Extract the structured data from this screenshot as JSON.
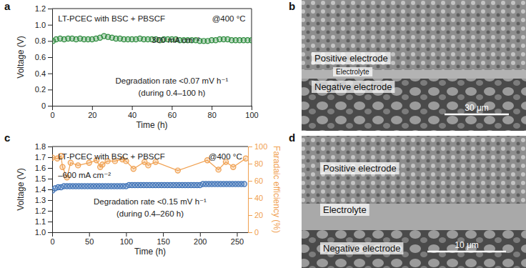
{
  "chart_data": [
    {
      "type": "scatter",
      "panel": "a",
      "xlabel": "Time (h)",
      "ylabel": "Voltage (V)",
      "xlim": [
        0,
        100
      ],
      "xticks": [
        0,
        20,
        40,
        60,
        80,
        100
      ],
      "ylim": [
        0,
        1.2
      ],
      "yticks": [
        0,
        0.2,
        0.4,
        0.6,
        0.8,
        {
          "value": 1,
          "label": "1.0"
        },
        1.2
      ],
      "annotations": [
        "LT-PCEC with BSC + PBSCF",
        "@400 °C",
        "300 mA cm⁻²",
        "Degradation rate <0.07 mV h⁻¹",
        "(during 0.4–100 h)"
      ],
      "series": [
        {
          "type": "scatter",
          "marker": "circle",
          "color": "#2e8b3e",
          "x": [
            0.4,
            2,
            4,
            6,
            8,
            10,
            12,
            14,
            16,
            18,
            20,
            22,
            24,
            26,
            28,
            30,
            32,
            34,
            36,
            38,
            40,
            42,
            44,
            46,
            48,
            50,
            52,
            54,
            56,
            58,
            60,
            62,
            64,
            66,
            68,
            70,
            72,
            74,
            76,
            78,
            80,
            82,
            84,
            86,
            88,
            90,
            92,
            94,
            96,
            98,
            100
          ],
          "values": [
            0.8,
            0.82,
            0.83,
            0.82,
            0.83,
            0.83,
            0.82,
            0.83,
            0.82,
            0.82,
            0.82,
            0.83,
            0.84,
            0.86,
            0.85,
            0.84,
            0.83,
            0.83,
            0.82,
            0.82,
            0.82,
            0.82,
            0.83,
            0.82,
            0.82,
            0.82,
            0.82,
            0.81,
            0.82,
            0.82,
            0.82,
            0.82,
            0.81,
            0.81,
            0.81,
            0.81,
            0.81,
            0.8,
            0.8,
            0.8,
            0.81,
            0.81,
            0.82,
            0.82,
            0.82,
            0.81,
            0.81,
            0.81,
            0.81,
            0.81,
            0.81
          ]
        }
      ]
    },
    {
      "type": "scatter",
      "panel": "c",
      "xlabel": "Time (h)",
      "ylabel": "Voltage (V)",
      "y2label": "Faradaic efficiency (%)",
      "xlim": [
        0,
        265
      ],
      "xticks": [
        0,
        50,
        100,
        150,
        200,
        250
      ],
      "ylim": [
        1,
        1.8
      ],
      "yticks": [
        {
          "value": 1,
          "label": "1.0"
        },
        1.1,
        1.2,
        1.3,
        1.4,
        1.5,
        1.6,
        1.7,
        1.8
      ],
      "y2lim": [
        0,
        100
      ],
      "y2ticks": [
        0,
        20,
        40,
        60,
        80,
        100
      ],
      "annotations": [
        "LT-PCEC with BSC + PBSCF",
        "@400 °C",
        "–600 mA cm⁻²",
        "Degradation rate <0.15 mV h⁻¹",
        "(during 0.4–260 h)"
      ],
      "series": [
        {
          "type": "scatter",
          "marker": "circle",
          "color": "#3a6fb5",
          "x": [
            0.4,
            4,
            8,
            12,
            16,
            20,
            24,
            28,
            32,
            36,
            40,
            44,
            48,
            52,
            56,
            60,
            64,
            68,
            72,
            76,
            80,
            84,
            88,
            92,
            96,
            100,
            104,
            108,
            112,
            116,
            120,
            124,
            128,
            132,
            136,
            140,
            144,
            148,
            152,
            156,
            160,
            164,
            168,
            172,
            176,
            180,
            184,
            188,
            192,
            196,
            200,
            204,
            208,
            212,
            216,
            220,
            224,
            228,
            232,
            236,
            240,
            244,
            248,
            252,
            256,
            260
          ],
          "values": [
            1.39,
            1.41,
            1.42,
            1.42,
            1.43,
            1.43,
            1.43,
            1.43,
            1.43,
            1.43,
            1.43,
            1.43,
            1.43,
            1.43,
            1.43,
            1.43,
            1.43,
            1.43,
            1.43,
            1.43,
            1.43,
            1.43,
            1.43,
            1.43,
            1.43,
            1.43,
            1.44,
            1.44,
            1.44,
            1.44,
            1.44,
            1.44,
            1.44,
            1.44,
            1.44,
            1.44,
            1.44,
            1.44,
            1.44,
            1.44,
            1.44,
            1.44,
            1.44,
            1.44,
            1.44,
            1.44,
            1.44,
            1.44,
            1.44,
            1.44,
            1.44,
            1.45,
            1.45,
            1.45,
            1.45,
            1.45,
            1.45,
            1.45,
            1.45,
            1.45,
            1.45,
            1.45,
            1.45,
            1.45,
            1.45,
            1.45
          ]
        },
        {
          "type": "line",
          "marker": "circle",
          "line_style": "solid",
          "color": "#f0a050",
          "axis": "y2",
          "x": [
            0.4,
            7,
            12,
            14,
            20,
            25,
            35,
            50,
            60,
            65,
            68,
            75,
            85,
            95,
            100,
            110,
            125,
            130,
            140,
            170,
            210,
            225,
            235,
            245,
            262
          ],
          "values": [
            87,
            86,
            89,
            76,
            64,
            81,
            78,
            81,
            84,
            76,
            79,
            83,
            83,
            85,
            83,
            74,
            82,
            78,
            82,
            72,
            84,
            73,
            82,
            76,
            86
          ]
        }
      ]
    }
  ],
  "images": [
    {
      "panel": "b",
      "labels": [
        "Positive electrode",
        "Electrolyte",
        "Negative electrode"
      ],
      "scale_bar": "30 μm"
    },
    {
      "panel": "d",
      "labels": [
        "Positive electrode",
        "Electrolyte",
        "Negative electrode"
      ],
      "scale_bar": "10 μm"
    }
  ]
}
